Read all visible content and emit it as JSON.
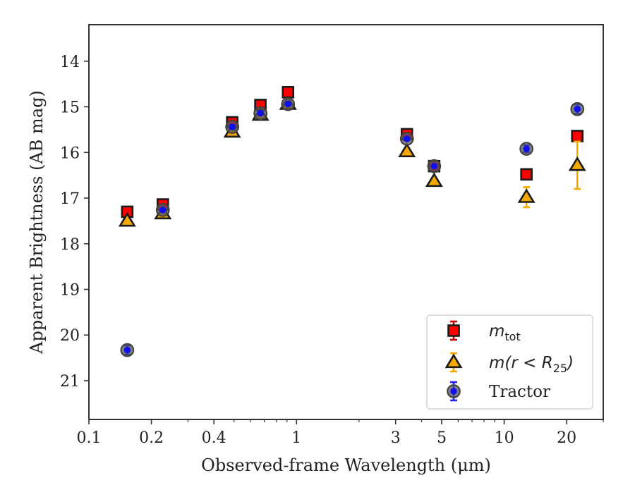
{
  "chart_data": {
    "type": "scatter",
    "title": "",
    "xlabel": "Observed-frame Wavelength (μm)",
    "ylabel": "Apparent Brightness (AB mag)",
    "x_scale": "log",
    "xlim": [
      0.1,
      30
    ],
    "ylim": [
      21.85,
      13.2
    ],
    "y_inverted": true,
    "x_ticks": [
      0.1,
      0.2,
      0.4,
      1,
      3,
      5,
      10,
      20
    ],
    "x_tick_labels": [
      "0.1",
      "0.2",
      "0.4",
      "1",
      "3",
      "5",
      "10",
      "20"
    ],
    "y_ticks": [
      14,
      15,
      16,
      17,
      18,
      19,
      20,
      21
    ],
    "y_tick_labels": [
      "14",
      "15",
      "16",
      "17",
      "18",
      "19",
      "20",
      "21"
    ],
    "grid": false,
    "legend_position": "lower-right",
    "series": [
      {
        "name": "m_tot",
        "legend_label": {
          "main": "m",
          "sub": "tot"
        },
        "marker": "square",
        "fill": "#ff0000",
        "edge": "#1a1a1a",
        "errcolor": "#cc0000",
        "x": [
          0.153,
          0.227,
          0.49,
          0.67,
          0.91,
          3.4,
          4.6,
          12.8,
          22.5
        ],
        "y": [
          17.3,
          17.14,
          15.34,
          14.96,
          14.68,
          15.6,
          16.3,
          16.48,
          15.64
        ],
        "yerr": [
          0.05,
          0.05,
          0.03,
          0.03,
          0.03,
          0.03,
          0.03,
          0.05,
          0.08
        ]
      },
      {
        "name": "m(r < R25)",
        "legend_label": {
          "main": "m(r < R",
          "sub": "25",
          "tail": ")"
        },
        "marker": "triangle",
        "fill": "#f5a800",
        "edge": "#1a1a1a",
        "errcolor": "#f5a800",
        "x": [
          0.153,
          0.227,
          0.49,
          0.67,
          0.91,
          3.4,
          4.6,
          12.8,
          22.5
        ],
        "y": [
          17.5,
          17.34,
          15.55,
          15.18,
          14.94,
          15.98,
          16.63,
          16.98,
          16.28
        ],
        "yerr": [
          0.04,
          0.04,
          0.03,
          0.03,
          0.03,
          0.04,
          0.05,
          0.22,
          0.52
        ]
      },
      {
        "name": "Tractor",
        "legend_label": {
          "main": "Tractor"
        },
        "marker": "circle",
        "fill": "#1010ee",
        "edge": "#404040",
        "errcolor": "#2222ff",
        "x": [
          0.153,
          0.227,
          0.49,
          0.67,
          0.91,
          3.4,
          4.6,
          12.8,
          22.5
        ],
        "y": [
          20.33,
          17.26,
          15.44,
          15.14,
          14.94,
          15.7,
          16.3,
          15.92,
          15.05
        ],
        "yerr": [
          0.1,
          0.04,
          0.03,
          0.03,
          0.03,
          0.03,
          0.03,
          0.08,
          0.1
        ]
      }
    ]
  }
}
